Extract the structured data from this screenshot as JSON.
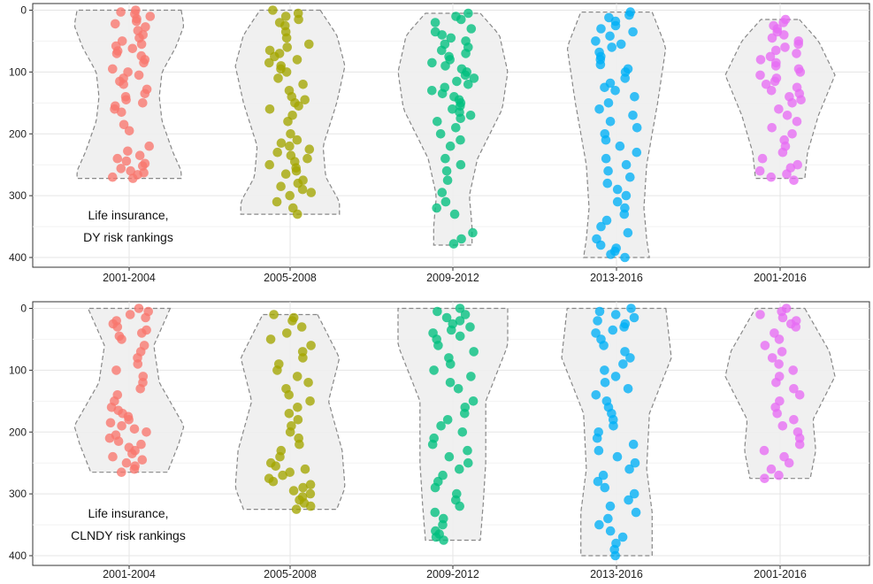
{
  "chart_data": [
    {
      "type": "scatter",
      "subtype": "violin-jitter",
      "annotation": [
        "Life insurance,",
        "DY risk rankings"
      ],
      "categories": [
        "2001-2004",
        "2005-2008",
        "2009-2012",
        "2013-2016",
        "2001-2016"
      ],
      "y_ticks": [
        0,
        100,
        200,
        300,
        400
      ],
      "ylim": [
        -5,
        410
      ],
      "y_reversed": true,
      "grid": true,
      "legend": "none",
      "series": [
        {
          "category": "2001-2004",
          "color": "#F8766D",
          "values": [
            0,
            3,
            6,
            10,
            14,
            18,
            22,
            27,
            33,
            40,
            45,
            50,
            55,
            58,
            62,
            66,
            70,
            74,
            80,
            85,
            95,
            100,
            105,
            110,
            115,
            120,
            128,
            135,
            140,
            145,
            150,
            155,
            160,
            165,
            185,
            195,
            220,
            228,
            235,
            240,
            244,
            248,
            252,
            256,
            260,
            263,
            266,
            270,
            272
          ],
          "violin": [
            [
              0,
              0.95
            ],
            [
              25,
              1.0
            ],
            [
              60,
              0.85
            ],
            [
              100,
              0.6
            ],
            [
              140,
              0.55
            ],
            [
              180,
              0.6
            ],
            [
              230,
              0.8
            ],
            [
              260,
              0.95
            ],
            [
              272,
              0.95
            ]
          ]
        },
        {
          "category": "2005-2008",
          "color": "#A3A500",
          "values": [
            0,
            5,
            10,
            15,
            20,
            25,
            35,
            45,
            55,
            60,
            65,
            70,
            75,
            80,
            85,
            90,
            95,
            100,
            110,
            120,
            130,
            140,
            145,
            150,
            155,
            160,
            170,
            180,
            200,
            210,
            215,
            220,
            225,
            230,
            235,
            240,
            245,
            250,
            255,
            260,
            265,
            275,
            280,
            285,
            290,
            295,
            300,
            310,
            320,
            330
          ],
          "violin": [
            [
              0,
              0.55
            ],
            [
              40,
              0.85
            ],
            [
              90,
              1.0
            ],
            [
              150,
              0.85
            ],
            [
              220,
              0.6
            ],
            [
              270,
              0.65
            ],
            [
              310,
              0.9
            ],
            [
              330,
              0.9
            ]
          ]
        },
        {
          "category": "2009-2012",
          "color": "#00BF7D",
          "values": [
            5,
            10,
            15,
            20,
            30,
            35,
            40,
            45,
            50,
            55,
            60,
            65,
            70,
            75,
            80,
            85,
            90,
            95,
            100,
            105,
            110,
            115,
            120,
            125,
            130,
            135,
            140,
            145,
            150,
            155,
            160,
            165,
            170,
            175,
            180,
            190,
            200,
            210,
            220,
            240,
            250,
            260,
            275,
            295,
            310,
            320,
            330,
            360,
            370,
            378
          ],
          "violin": [
            [
              5,
              0.5
            ],
            [
              40,
              0.85
            ],
            [
              100,
              1.0
            ],
            [
              160,
              0.9
            ],
            [
              240,
              0.45
            ],
            [
              300,
              0.3
            ],
            [
              350,
              0.35
            ],
            [
              380,
              0.35
            ]
          ]
        },
        {
          "category": "2013-2016",
          "color": "#00B0F6",
          "values": [
            3,
            8,
            12,
            18,
            25,
            30,
            35,
            42,
            50,
            55,
            60,
            68,
            75,
            80,
            88,
            95,
            100,
            110,
            118,
            125,
            130,
            140,
            150,
            160,
            170,
            180,
            190,
            200,
            210,
            220,
            230,
            240,
            250,
            260,
            270,
            280,
            290,
            300,
            310,
            320,
            330,
            340,
            350,
            360,
            370,
            380,
            385,
            390,
            395,
            400
          ],
          "violin": [
            [
              3,
              0.65
            ],
            [
              60,
              0.9
            ],
            [
              150,
              0.75
            ],
            [
              250,
              0.55
            ],
            [
              320,
              0.5
            ],
            [
              370,
              0.55
            ],
            [
              400,
              0.6
            ]
          ]
        },
        {
          "category": "2001-2016",
          "color": "#E76BF3",
          "values": [
            15,
            20,
            25,
            30,
            35,
            40,
            45,
            50,
            55,
            60,
            65,
            70,
            75,
            80,
            85,
            90,
            95,
            100,
            105,
            110,
            115,
            120,
            125,
            130,
            135,
            140,
            145,
            150,
            160,
            170,
            180,
            190,
            200,
            210,
            220,
            230,
            240,
            250,
            255,
            260,
            265,
            270,
            275
          ],
          "violin": [
            [
              15,
              0.35
            ],
            [
              50,
              0.7
            ],
            [
              105,
              1.0
            ],
            [
              170,
              0.7
            ],
            [
              230,
              0.5
            ],
            [
              272,
              0.45
            ]
          ]
        }
      ]
    },
    {
      "type": "scatter",
      "subtype": "violin-jitter",
      "annotation": [
        "Life insurance,",
        "CLNDY risk rankings"
      ],
      "categories": [
        "2001-2004",
        "2005-2008",
        "2009-2012",
        "2013-2016",
        "2001-2016"
      ],
      "y_ticks": [
        0,
        100,
        200,
        300,
        400
      ],
      "ylim": [
        -5,
        410
      ],
      "y_reversed": true,
      "grid": true,
      "legend": "none",
      "series": [
        {
          "category": "2001-2004",
          "color": "#F8766D",
          "values": [
            0,
            5,
            10,
            15,
            20,
            25,
            30,
            35,
            40,
            45,
            50,
            60,
            70,
            80,
            90,
            100,
            110,
            120,
            130,
            140,
            150,
            160,
            165,
            170,
            175,
            180,
            185,
            190,
            195,
            200,
            205,
            210,
            215,
            220,
            225,
            230,
            235,
            240,
            245,
            250,
            255,
            260,
            265
          ],
          "violin": [
            [
              0,
              0.75
            ],
            [
              60,
              0.45
            ],
            [
              120,
              0.55
            ],
            [
              190,
              1.0
            ],
            [
              220,
              0.9
            ],
            [
              265,
              0.7
            ]
          ]
        },
        {
          "category": "2005-2008",
          "color": "#A3A500",
          "values": [
            10,
            15,
            20,
            30,
            40,
            50,
            60,
            70,
            80,
            90,
            100,
            110,
            120,
            130,
            140,
            150,
            160,
            170,
            180,
            190,
            200,
            210,
            220,
            230,
            240,
            250,
            255,
            260,
            265,
            270,
            275,
            280,
            285,
            290,
            295,
            300,
            305,
            310,
            315,
            320,
            325
          ],
          "violin": [
            [
              10,
              0.5
            ],
            [
              80,
              0.9
            ],
            [
              150,
              0.7
            ],
            [
              230,
              0.95
            ],
            [
              290,
              1.0
            ],
            [
              325,
              0.85
            ]
          ]
        },
        {
          "category": "2009-2012",
          "color": "#00BF7D",
          "values": [
            0,
            5,
            10,
            15,
            20,
            25,
            30,
            35,
            40,
            45,
            50,
            60,
            70,
            80,
            90,
            100,
            110,
            120,
            130,
            150,
            160,
            170,
            180,
            190,
            200,
            210,
            220,
            230,
            240,
            250,
            260,
            270,
            280,
            290,
            300,
            310,
            320,
            330,
            340,
            350,
            360,
            365,
            370,
            375
          ],
          "violin": [
            [
              0,
              1.0
            ],
            [
              60,
              1.0
            ],
            [
              150,
              0.6
            ],
            [
              250,
              0.6
            ],
            [
              320,
              0.55
            ],
            [
              375,
              0.5
            ]
          ]
        },
        {
          "category": "2013-2016",
          "color": "#00B0F6",
          "values": [
            0,
            5,
            10,
            15,
            20,
            25,
            30,
            35,
            40,
            50,
            60,
            70,
            80,
            90,
            100,
            110,
            120,
            130,
            140,
            150,
            160,
            170,
            180,
            190,
            200,
            210,
            220,
            230,
            240,
            250,
            260,
            270,
            280,
            290,
            300,
            310,
            320,
            330,
            340,
            350,
            360,
            370,
            380,
            390,
            400
          ],
          "violin": [
            [
              0,
              0.9
            ],
            [
              80,
              1.0
            ],
            [
              170,
              0.6
            ],
            [
              260,
              0.55
            ],
            [
              330,
              0.65
            ],
            [
              400,
              0.65
            ]
          ]
        },
        {
          "category": "2001-2016",
          "color": "#E76BF3",
          "values": [
            0,
            5,
            10,
            15,
            20,
            25,
            30,
            40,
            50,
            60,
            70,
            80,
            90,
            100,
            110,
            120,
            130,
            140,
            150,
            160,
            170,
            180,
            190,
            200,
            210,
            220,
            230,
            240,
            250,
            260,
            270,
            275
          ],
          "violin": [
            [
              0,
              0.45
            ],
            [
              70,
              0.9
            ],
            [
              110,
              1.0
            ],
            [
              180,
              0.6
            ],
            [
              230,
              0.65
            ],
            [
              275,
              0.55
            ]
          ]
        }
      ]
    }
  ]
}
